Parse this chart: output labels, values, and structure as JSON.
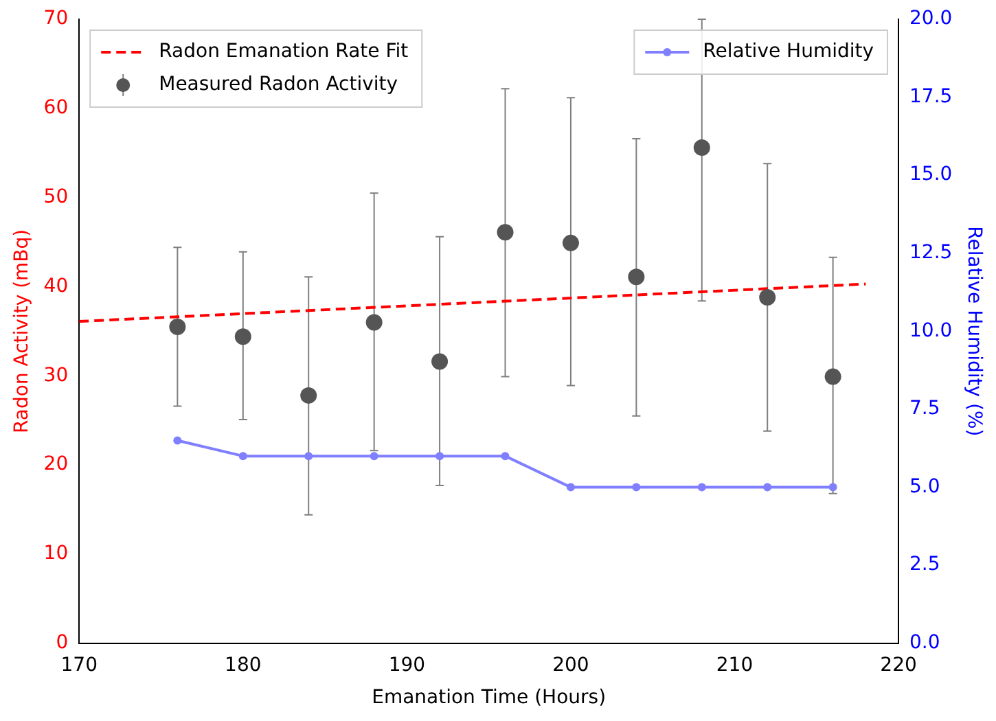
{
  "chart_data": {
    "type": "scatter",
    "xlabel": "Emanation Time (Hours)",
    "ylabel": "Radon Activity (mBq)",
    "y2label": "Relative Humidity (%)",
    "xlim": [
      170,
      220
    ],
    "xticks": [
      170,
      180,
      190,
      200,
      210,
      220
    ],
    "ylim": [
      0,
      70
    ],
    "yticks": [
      0,
      10,
      20,
      30,
      40,
      50,
      60,
      70
    ],
    "y2lim": [
      0,
      20
    ],
    "y2ticks": [
      {
        "value": 0,
        "label": "0.0"
      },
      {
        "value": 2.5,
        "label": "2.5"
      },
      {
        "value": 5,
        "label": "5.0"
      },
      {
        "value": 7.5,
        "label": "7.5"
      },
      {
        "value": 10,
        "label": "10.0"
      },
      {
        "value": 12.5,
        "label": "12.5"
      },
      {
        "value": 15,
        "label": "15.0"
      },
      {
        "value": 17.5,
        "label": "17.5"
      },
      {
        "value": 20,
        "label": "20.0"
      }
    ],
    "legend": "top left",
    "grid": false,
    "series": [
      {
        "name": "Radon Emanation Rate Fit",
        "type": "line",
        "color": "#ff0000",
        "line_style": "dashed",
        "marker": "none",
        "x": [
          170,
          218
        ],
        "values": [
          36.1,
          40.3
        ]
      },
      {
        "name": "Measured Radon Activity",
        "type": "scatter",
        "color": "#555555",
        "marker": "circle",
        "x": [
          176,
          180,
          184,
          188,
          192,
          196,
          200,
          204,
          208,
          212,
          216
        ],
        "values": [
          35.5,
          34.4,
          27.8,
          36.0,
          31.6,
          46.1,
          44.9,
          41.1,
          55.6,
          38.8,
          29.9
        ],
        "errors": [
          [
            26.6,
            44.4
          ],
          [
            25.1,
            43.9
          ],
          [
            14.4,
            41.1
          ],
          [
            21.6,
            50.5
          ],
          [
            17.7,
            45.6
          ],
          [
            29.9,
            62.2
          ],
          [
            28.9,
            61.2
          ],
          [
            25.5,
            56.6
          ],
          [
            38.4,
            70
          ],
          [
            23.8,
            53.8
          ],
          [
            16.8,
            43.3
          ]
        ]
      },
      {
        "name": "Relative Humidity",
        "type": "line",
        "axis": "y2",
        "color": "#7f7fff",
        "marker": "circle",
        "line_style": "solid",
        "x": [
          176,
          180,
          184,
          188,
          192,
          196,
          200,
          204,
          208,
          212,
          216
        ],
        "values": [
          6.5,
          6,
          6,
          6,
          6,
          6,
          5,
          5,
          5,
          5,
          5
        ]
      }
    ]
  }
}
